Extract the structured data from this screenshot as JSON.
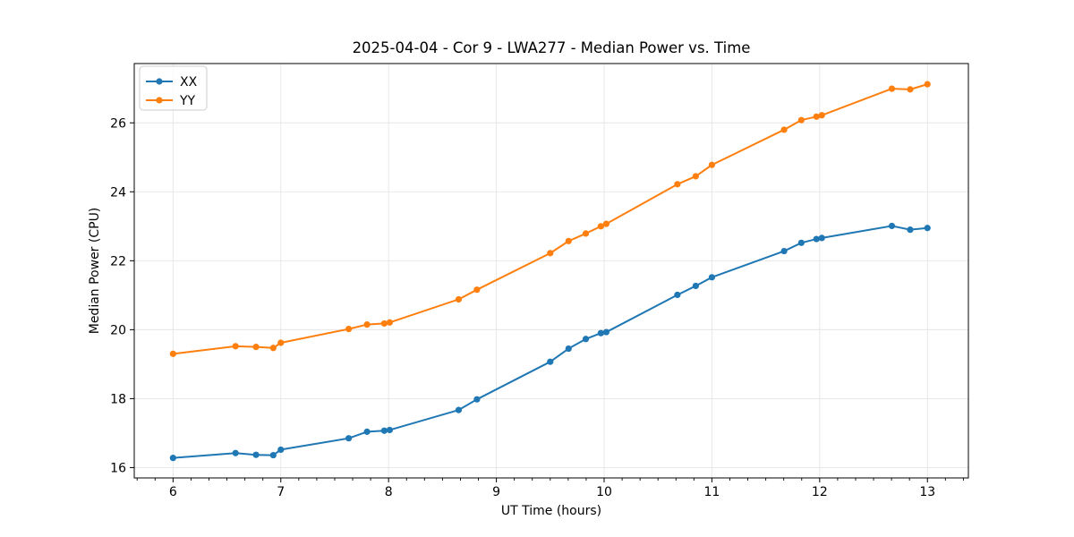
{
  "figure": {
    "background": "#ffffff",
    "spine_color": "#000000",
    "grid_color": "#e5e5e5"
  },
  "chart_data": {
    "type": "line",
    "title": "2025-04-04 - Cor 9 - LWA277 - Median Power vs. Time",
    "xlabel": "UT Time (hours)",
    "ylabel": "Median Power (CPU)",
    "xlim": [
      5.64,
      13.38
    ],
    "ylim": [
      15.7,
      27.72
    ],
    "xticks": [
      6,
      7,
      8,
      9,
      10,
      11,
      12,
      13
    ],
    "yticks": [
      16,
      18,
      20,
      22,
      24,
      26
    ],
    "x_minor_step": 0.1666667,
    "grid": true,
    "legend_position": "upper left",
    "x": [
      6.0,
      6.58,
      6.77,
      6.93,
      7.0,
      7.63,
      7.8,
      7.96,
      8.01,
      8.65,
      8.82,
      9.5,
      9.67,
      9.83,
      9.97,
      10.02,
      10.68,
      10.85,
      11.0,
      11.67,
      11.83,
      11.97,
      12.02,
      12.67,
      12.84,
      13.0
    ],
    "series": [
      {
        "name": "XX",
        "color": "#1f77b4",
        "values": [
          16.28,
          16.42,
          16.37,
          16.36,
          16.52,
          16.85,
          17.04,
          17.07,
          17.09,
          17.67,
          17.98,
          19.07,
          19.45,
          19.73,
          19.9,
          19.93,
          21.01,
          21.27,
          21.52,
          22.28,
          22.52,
          22.63,
          22.66,
          23.01,
          22.9,
          22.95
        ]
      },
      {
        "name": "YY",
        "color": "#ff7f0e",
        "values": [
          19.3,
          19.52,
          19.5,
          19.47,
          19.62,
          20.02,
          20.15,
          20.18,
          20.21,
          20.88,
          21.16,
          22.22,
          22.57,
          22.79,
          23.0,
          23.07,
          24.22,
          24.45,
          24.78,
          25.8,
          26.08,
          26.18,
          26.22,
          26.99,
          26.97,
          27.12
        ]
      }
    ]
  }
}
